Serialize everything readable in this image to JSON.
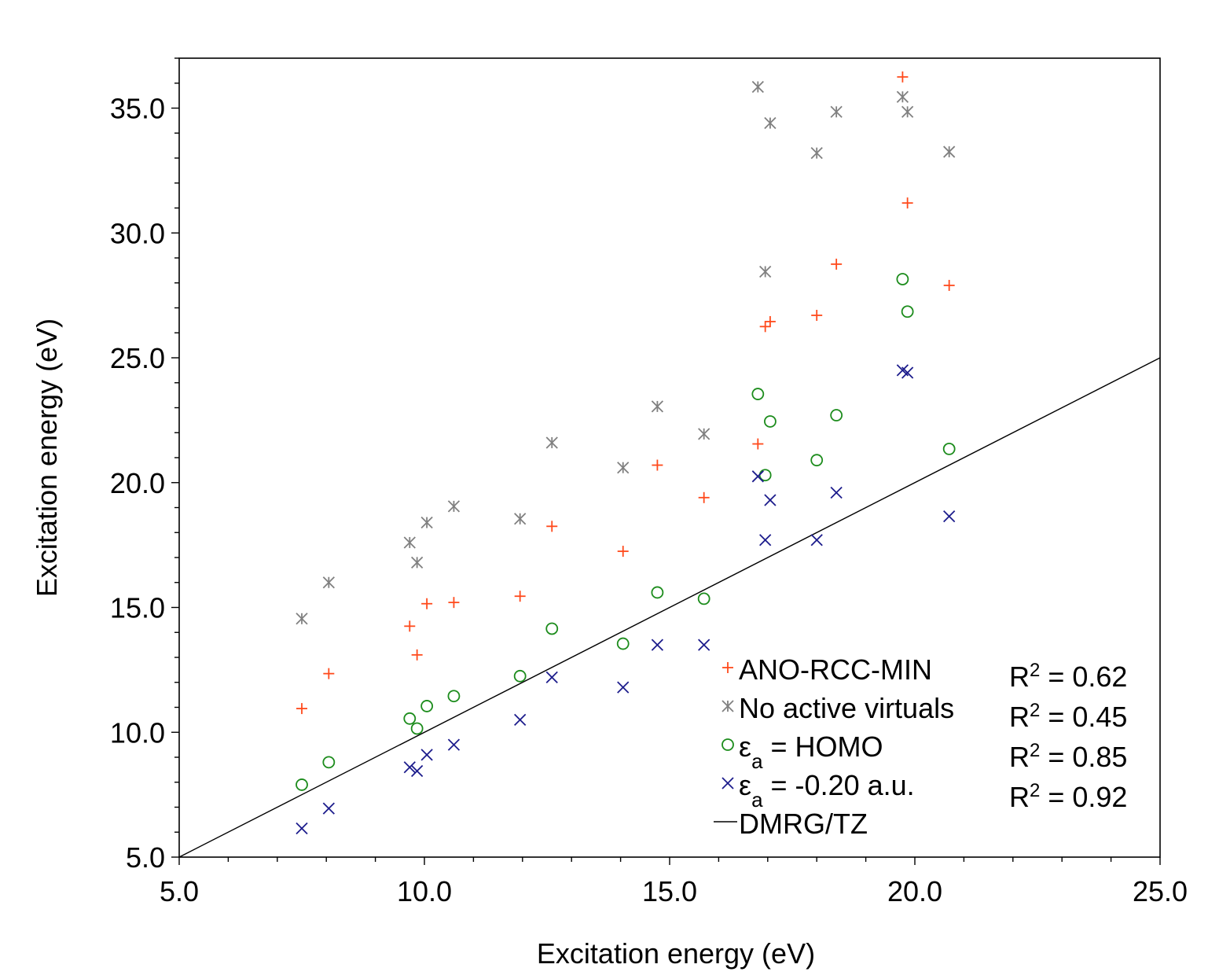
{
  "chart_data": {
    "type": "scatter",
    "xlabel": "Excitation energy (eV)",
    "ylabel": "Excitation energy (eV)",
    "xlim": [
      5.0,
      25.0
    ],
    "ylim": [
      5.0,
      37.0
    ],
    "xticks": [
      "5.0",
      "10.0",
      "15.0",
      "20.0",
      "25.0"
    ],
    "yticks": [
      "5.0",
      "10.0",
      "15.0",
      "20.0",
      "25.0",
      "30.0",
      "35.0"
    ],
    "x": [
      7.5,
      8.05,
      9.7,
      9.85,
      10.05,
      10.6,
      11.95,
      12.6,
      14.05,
      14.75,
      15.7,
      16.8,
      16.95,
      17.05,
      18.0,
      18.4,
      19.75,
      19.85,
      20.7
    ],
    "series": [
      {
        "name": "ANO-RCC-MIN",
        "marker": "plus",
        "color": "#ff4a1c",
        "r2": "R² = 0.62",
        "values": [
          10.95,
          12.35,
          14.25,
          13.1,
          15.15,
          15.2,
          15.45,
          18.25,
          17.25,
          20.7,
          19.4,
          21.55,
          26.25,
          26.45,
          26.7,
          28.75,
          36.25,
          31.2,
          27.9
        ]
      },
      {
        "name": "No active virtuals",
        "marker": "asterisk",
        "color": "#808080",
        "r2": "R² = 0.45",
        "values": [
          14.55,
          16.0,
          17.6,
          16.8,
          18.4,
          19.05,
          18.55,
          21.6,
          20.6,
          23.05,
          21.95,
          35.85,
          28.45,
          34.4,
          33.2,
          34.85,
          35.45,
          34.85,
          33.25
        ]
      },
      {
        "name": "εa = HOMO",
        "marker": "circle",
        "color": "#1c8c1c",
        "r2": "R² = 0.85",
        "values": [
          7.9,
          8.8,
          10.55,
          10.15,
          11.05,
          11.45,
          12.25,
          14.15,
          13.55,
          15.6,
          15.35,
          23.55,
          20.3,
          22.45,
          20.9,
          22.7,
          28.15,
          26.85,
          21.35
        ]
      },
      {
        "name": "εa = -0.20 a.u.",
        "marker": "cross",
        "color": "#1c1c8c",
        "r2": "R² = 0.92",
        "values": [
          6.15,
          6.95,
          8.6,
          8.45,
          9.1,
          9.5,
          10.5,
          12.2,
          11.8,
          13.5,
          13.5,
          20.25,
          17.7,
          19.3,
          17.7,
          19.6,
          24.5,
          24.4,
          18.65
        ]
      }
    ],
    "reference_line": {
      "name": "DMRG/TZ",
      "points": [
        [
          5.0,
          5.0
        ],
        [
          25.0,
          25.0
        ]
      ],
      "color": "#000000"
    },
    "legend": {
      "placement": "bottom-right",
      "items": [
        {
          "label_main": "ANO-RCC-MIN",
          "sub": "",
          "label_rest": ""
        },
        {
          "label_main": "No active virtuals",
          "sub": "",
          "label_rest": ""
        },
        {
          "label_main": "ε",
          "sub": "a",
          "label_rest": " = HOMO"
        },
        {
          "label_main": "ε",
          "sub": "a",
          "label_rest": " = -0.20 a.u."
        },
        {
          "label_main": "DMRG/TZ",
          "sub": "",
          "label_rest": ""
        }
      ]
    },
    "r2_labels": [
      {
        "prefix": "R",
        "sup": "2",
        "rest": " = 0.62"
      },
      {
        "prefix": "R",
        "sup": "2",
        "rest": " = 0.45"
      },
      {
        "prefix": "R",
        "sup": "2",
        "rest": " = 0.85"
      },
      {
        "prefix": "R",
        "sup": "2",
        "rest": " = 0.92"
      }
    ]
  }
}
